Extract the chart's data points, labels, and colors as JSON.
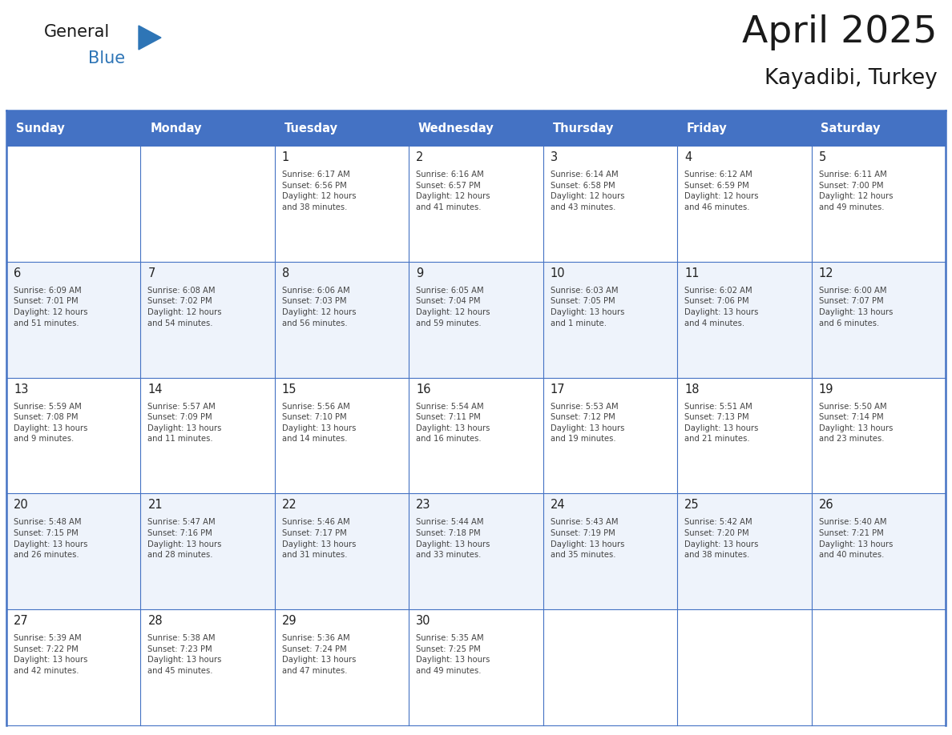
{
  "title": "April 2025",
  "subtitle": "Kayadibi, Turkey",
  "header_bg": "#4472C4",
  "header_text": "#FFFFFF",
  "header_days": [
    "Sunday",
    "Monday",
    "Tuesday",
    "Wednesday",
    "Thursday",
    "Friday",
    "Saturday"
  ],
  "grid_color": "#4472C4",
  "weeks": [
    [
      {
        "day": null,
        "info": null
      },
      {
        "day": null,
        "info": null
      },
      {
        "day": 1,
        "info": "Sunrise: 6:17 AM\nSunset: 6:56 PM\nDaylight: 12 hours\nand 38 minutes."
      },
      {
        "day": 2,
        "info": "Sunrise: 6:16 AM\nSunset: 6:57 PM\nDaylight: 12 hours\nand 41 minutes."
      },
      {
        "day": 3,
        "info": "Sunrise: 6:14 AM\nSunset: 6:58 PM\nDaylight: 12 hours\nand 43 minutes."
      },
      {
        "day": 4,
        "info": "Sunrise: 6:12 AM\nSunset: 6:59 PM\nDaylight: 12 hours\nand 46 minutes."
      },
      {
        "day": 5,
        "info": "Sunrise: 6:11 AM\nSunset: 7:00 PM\nDaylight: 12 hours\nand 49 minutes."
      }
    ],
    [
      {
        "day": 6,
        "info": "Sunrise: 6:09 AM\nSunset: 7:01 PM\nDaylight: 12 hours\nand 51 minutes."
      },
      {
        "day": 7,
        "info": "Sunrise: 6:08 AM\nSunset: 7:02 PM\nDaylight: 12 hours\nand 54 minutes."
      },
      {
        "day": 8,
        "info": "Sunrise: 6:06 AM\nSunset: 7:03 PM\nDaylight: 12 hours\nand 56 minutes."
      },
      {
        "day": 9,
        "info": "Sunrise: 6:05 AM\nSunset: 7:04 PM\nDaylight: 12 hours\nand 59 minutes."
      },
      {
        "day": 10,
        "info": "Sunrise: 6:03 AM\nSunset: 7:05 PM\nDaylight: 13 hours\nand 1 minute."
      },
      {
        "day": 11,
        "info": "Sunrise: 6:02 AM\nSunset: 7:06 PM\nDaylight: 13 hours\nand 4 minutes."
      },
      {
        "day": 12,
        "info": "Sunrise: 6:00 AM\nSunset: 7:07 PM\nDaylight: 13 hours\nand 6 minutes."
      }
    ],
    [
      {
        "day": 13,
        "info": "Sunrise: 5:59 AM\nSunset: 7:08 PM\nDaylight: 13 hours\nand 9 minutes."
      },
      {
        "day": 14,
        "info": "Sunrise: 5:57 AM\nSunset: 7:09 PM\nDaylight: 13 hours\nand 11 minutes."
      },
      {
        "day": 15,
        "info": "Sunrise: 5:56 AM\nSunset: 7:10 PM\nDaylight: 13 hours\nand 14 minutes."
      },
      {
        "day": 16,
        "info": "Sunrise: 5:54 AM\nSunset: 7:11 PM\nDaylight: 13 hours\nand 16 minutes."
      },
      {
        "day": 17,
        "info": "Sunrise: 5:53 AM\nSunset: 7:12 PM\nDaylight: 13 hours\nand 19 minutes."
      },
      {
        "day": 18,
        "info": "Sunrise: 5:51 AM\nSunset: 7:13 PM\nDaylight: 13 hours\nand 21 minutes."
      },
      {
        "day": 19,
        "info": "Sunrise: 5:50 AM\nSunset: 7:14 PM\nDaylight: 13 hours\nand 23 minutes."
      }
    ],
    [
      {
        "day": 20,
        "info": "Sunrise: 5:48 AM\nSunset: 7:15 PM\nDaylight: 13 hours\nand 26 minutes."
      },
      {
        "day": 21,
        "info": "Sunrise: 5:47 AM\nSunset: 7:16 PM\nDaylight: 13 hours\nand 28 minutes."
      },
      {
        "day": 22,
        "info": "Sunrise: 5:46 AM\nSunset: 7:17 PM\nDaylight: 13 hours\nand 31 minutes."
      },
      {
        "day": 23,
        "info": "Sunrise: 5:44 AM\nSunset: 7:18 PM\nDaylight: 13 hours\nand 33 minutes."
      },
      {
        "day": 24,
        "info": "Sunrise: 5:43 AM\nSunset: 7:19 PM\nDaylight: 13 hours\nand 35 minutes."
      },
      {
        "day": 25,
        "info": "Sunrise: 5:42 AM\nSunset: 7:20 PM\nDaylight: 13 hours\nand 38 minutes."
      },
      {
        "day": 26,
        "info": "Sunrise: 5:40 AM\nSunset: 7:21 PM\nDaylight: 13 hours\nand 40 minutes."
      }
    ],
    [
      {
        "day": 27,
        "info": "Sunrise: 5:39 AM\nSunset: 7:22 PM\nDaylight: 13 hours\nand 42 minutes."
      },
      {
        "day": 28,
        "info": "Sunrise: 5:38 AM\nSunset: 7:23 PM\nDaylight: 13 hours\nand 45 minutes."
      },
      {
        "day": 29,
        "info": "Sunrise: 5:36 AM\nSunset: 7:24 PM\nDaylight: 13 hours\nand 47 minutes."
      },
      {
        "day": 30,
        "info": "Sunrise: 5:35 AM\nSunset: 7:25 PM\nDaylight: 13 hours\nand 49 minutes."
      },
      {
        "day": null,
        "info": null
      },
      {
        "day": null,
        "info": null
      },
      {
        "day": null,
        "info": null
      }
    ]
  ]
}
